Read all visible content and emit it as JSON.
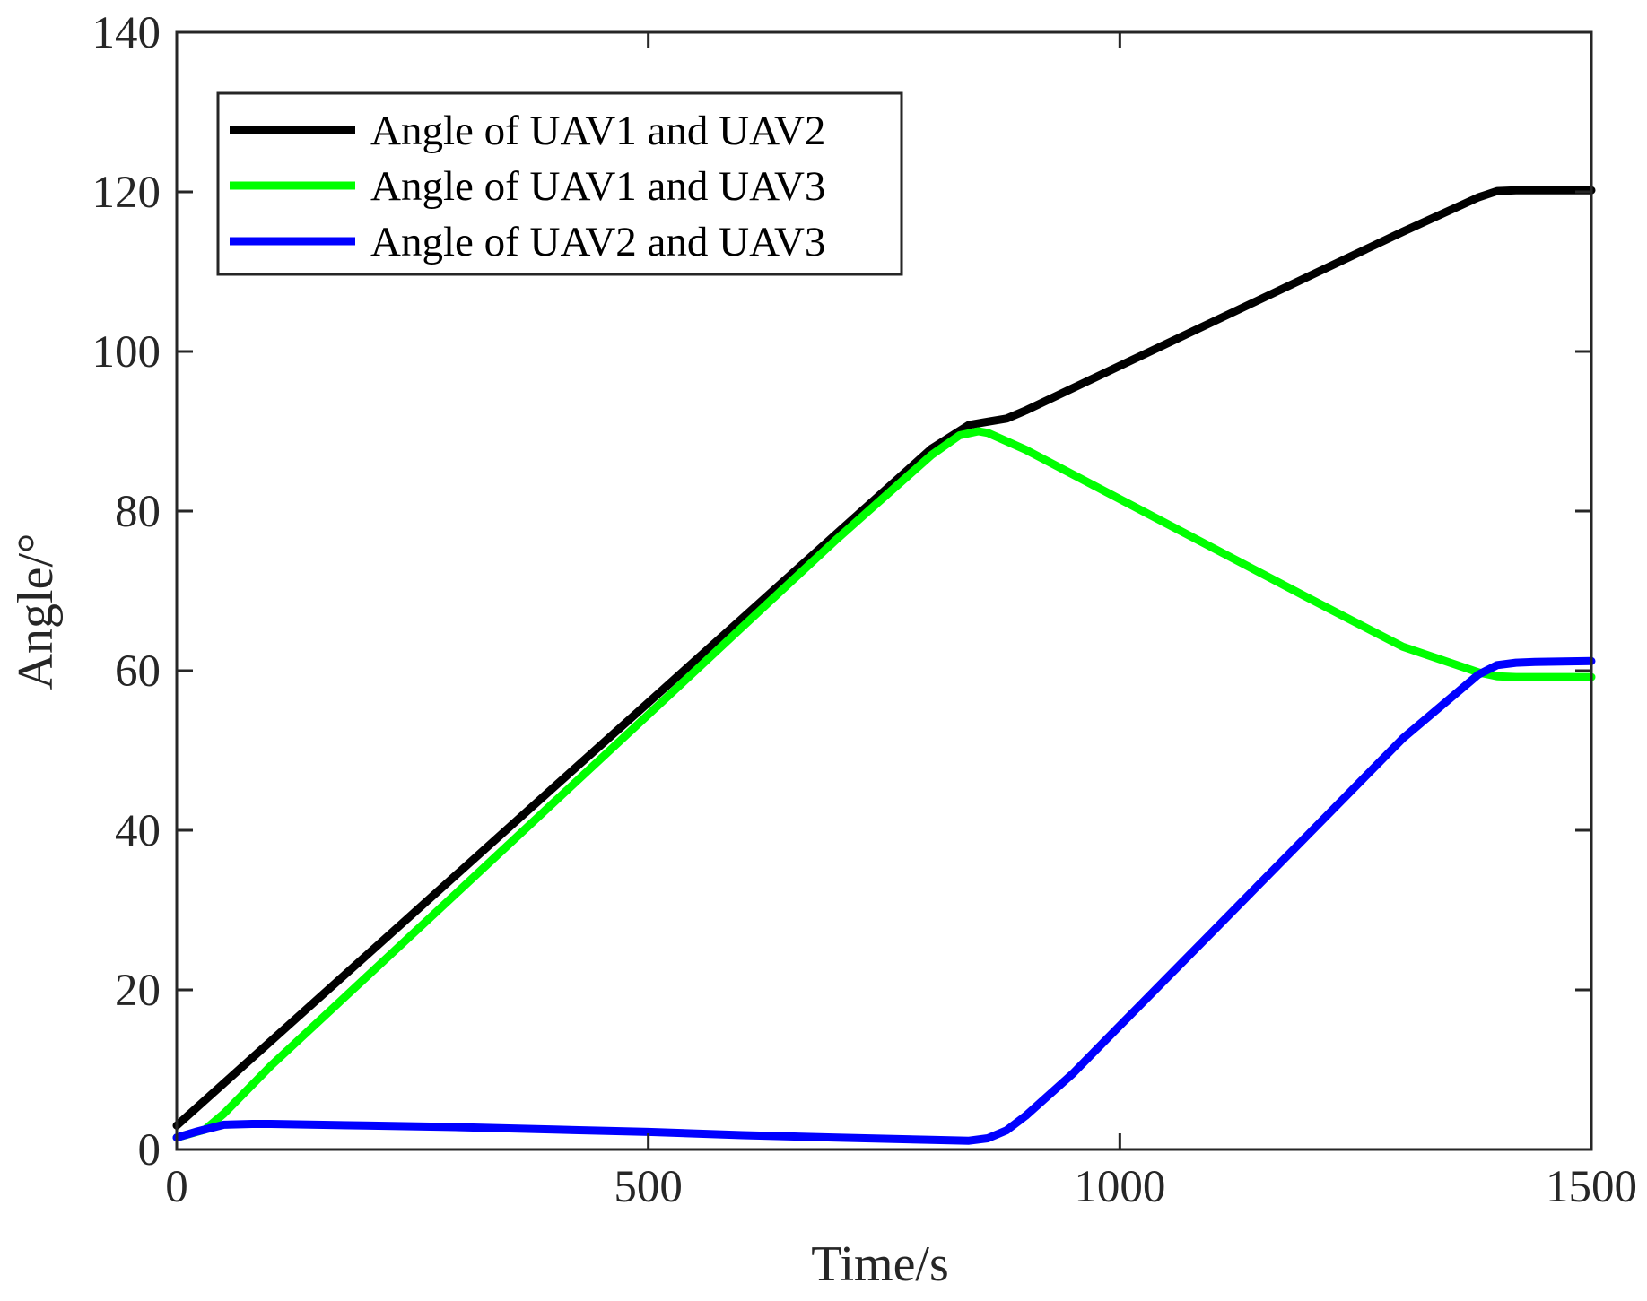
{
  "chart_data": {
    "type": "line",
    "title": "",
    "xlabel": "Time/s",
    "ylabel": "Angle/°",
    "xlim": [
      0,
      1500
    ],
    "ylim": [
      0,
      140
    ],
    "xticks": [
      "0",
      "500",
      "1000",
      "1500"
    ],
    "yticks": [
      "0",
      "20",
      "40",
      "60",
      "80",
      "100",
      "120",
      "140"
    ],
    "grid": false,
    "legend_position": "top-left",
    "series": [
      {
        "name": "Angle of UAV1 and UAV2",
        "color": "#000000",
        "x": [
          0,
          50,
          100,
          200,
          300,
          400,
          500,
          600,
          700,
          800,
          840,
          860,
          880,
          900,
          1000,
          1100,
          1200,
          1300,
          1380,
          1400,
          1420,
          1440,
          1460,
          1500
        ],
        "y": [
          3,
          8.3,
          13.6,
          24.2,
          34.8,
          45.4,
          56,
          66.6,
          77.2,
          87.8,
          90.8,
          91.2,
          91.6,
          92.6,
          98.2,
          103.8,
          109.4,
          115,
          119.3,
          120.1,
          120.2,
          120.2,
          120.2,
          120.2
        ]
      },
      {
        "name": "Angle of UAV1 and UAV3",
        "color": "#00ff00",
        "x": [
          0,
          30,
          50,
          100,
          200,
          300,
          400,
          500,
          600,
          700,
          800,
          830,
          850,
          860,
          900,
          1000,
          1100,
          1200,
          1300,
          1380,
          1400,
          1420,
          1450,
          1500
        ],
        "y": [
          1.5,
          2.5,
          4.5,
          10.5,
          21.5,
          32.5,
          43.5,
          54.5,
          65.5,
          76.5,
          87,
          89.5,
          90,
          89.8,
          87.7,
          81.5,
          75.3,
          69.1,
          63,
          59.8,
          59.3,
          59.2,
          59.2,
          59.2
        ]
      },
      {
        "name": "Angle of UAV2 and UAV3",
        "color": "#0000ff",
        "x": [
          0,
          20,
          50,
          80,
          100,
          200,
          300,
          400,
          500,
          600,
          700,
          800,
          840,
          860,
          880,
          900,
          950,
          1000,
          1100,
          1200,
          1300,
          1380,
          1400,
          1420,
          1440,
          1500
        ],
        "y": [
          1.5,
          2.2,
          3.1,
          3.2,
          3.2,
          3,
          2.8,
          2.5,
          2.2,
          1.8,
          1.5,
          1.2,
          1.1,
          1.4,
          2.4,
          4.2,
          9.5,
          15.5,
          27.5,
          39.5,
          51.5,
          59.5,
          60.7,
          61,
          61.1,
          61.2
        ]
      }
    ]
  }
}
